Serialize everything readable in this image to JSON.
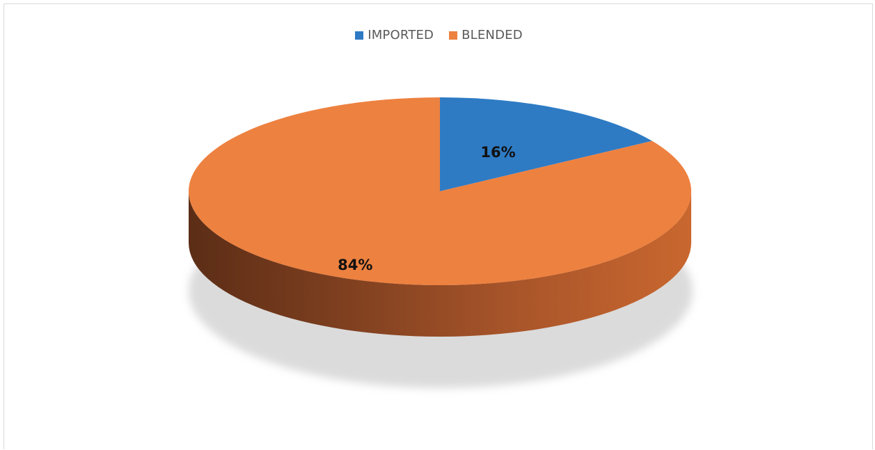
{
  "chart_data": {
    "type": "pie",
    "style": "3d",
    "categories": [
      "IMPORTED",
      "BLENDED"
    ],
    "values": [
      16,
      84
    ],
    "data_labels": [
      "16%",
      "84%"
    ],
    "colors": [
      "#2e7bc4",
      "#ed8140"
    ],
    "legend": "top-center",
    "title": ""
  }
}
